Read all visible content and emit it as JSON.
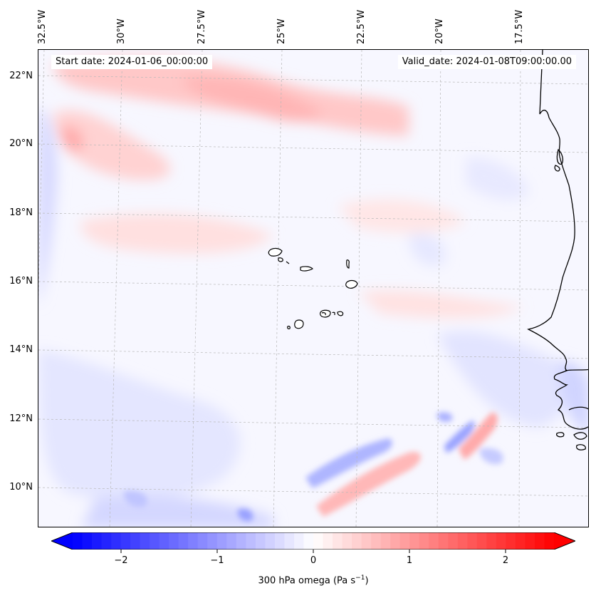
{
  "map": {
    "start_date": "Start date: 2024-01-06_00:00:00",
    "valid_date": "Valid_date: 2024-01-08T09:00:00.00",
    "lon_ticks": [
      "32.5°W",
      "30°W",
      "27.5°W",
      "25°W",
      "22.5°W",
      "20°W",
      "17.5°W"
    ],
    "lat_ticks": [
      "22°N",
      "20°N",
      "18°N",
      "16°N",
      "14°N",
      "12°N",
      "10°N"
    ],
    "field": "300 hPa omega",
    "colors": {
      "negative": "#0000ff",
      "neutral": "#ffffff",
      "positive": "#ff0000",
      "gridline": "#b0b0b0",
      "coastline": "#000000"
    },
    "features": [
      "Cape Verde islands",
      "West African coastline"
    ]
  },
  "colorbar": {
    "tick_labels": [
      "−2",
      "−1",
      "0",
      "1",
      "2"
    ],
    "tick_values": [
      -2,
      -1,
      0,
      1,
      2
    ],
    "range": [
      -2.5,
      2.5
    ],
    "levels": 50,
    "label_main": "300 hPa omega (Pa s",
    "label_sup": "−1",
    "label_end": ")"
  }
}
